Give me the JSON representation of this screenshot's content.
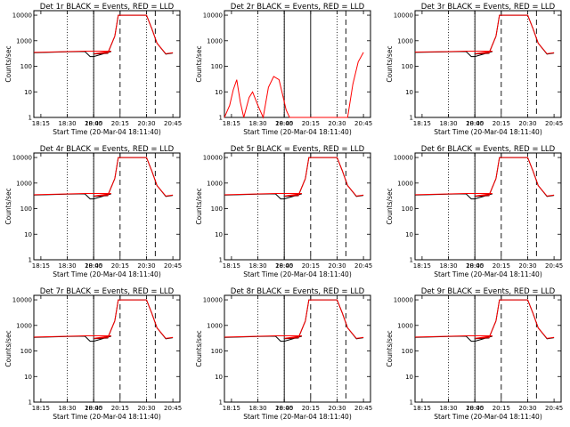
{
  "figure": {
    "ylabel": "Counts/sec",
    "xlabel": "Start Time (20-Mar-04 18:11:40)",
    "xticks": [
      "18:15",
      "18:30",
      "18:45",
      "20:00",
      "20:15",
      "20:30",
      "20:45"
    ],
    "yticks": [
      "1",
      "10",
      "100",
      "1000",
      "10000"
    ],
    "colors": {
      "events": "#000000",
      "lld": "#ff0000"
    }
  },
  "chart_data": [
    {
      "type": "line",
      "title": "Det 1r BLACK = Events, RED = LLD",
      "xlabel": "Start Time (20-Mar-04 18:11:40)",
      "ylabel": "Counts/sec",
      "y_scale": "log",
      "ylim": [
        1,
        15000
      ],
      "vlines": {
        "dotted": [
          "18:30",
          "18:45",
          "20:30"
        ],
        "solid": [
          "20:00"
        ],
        "dashed": [
          "20:15",
          "20:35"
        ]
      },
      "series": [
        {
          "name": "Events",
          "color": "#000000",
          "x": [
            "18:11",
            "18:30",
            "18:40",
            "18:43",
            "18:45",
            "18:55",
            "20:00",
            "20:08",
            "20:12",
            "20:14",
            "20:27",
            "20:30",
            "20:33",
            "20:36",
            "20:41",
            "20:45"
          ],
          "y": [
            340,
            370,
            380,
            240,
            240,
            380,
            300,
            320,
            1500,
            10000,
            10000,
            10000,
            3000,
            800,
            300,
            330
          ]
        },
        {
          "name": "LLD",
          "color": "#ff0000",
          "x": [
            "18:11",
            "18:30",
            "18:40",
            "18:45",
            "18:55",
            "20:00",
            "20:08",
            "20:12",
            "20:14",
            "20:27",
            "20:30",
            "20:33",
            "20:36",
            "20:41",
            "20:45"
          ],
          "y": [
            350,
            375,
            390,
            390,
            390,
            310,
            330,
            1500,
            10000,
            10000,
            10000,
            3000,
            800,
            310,
            340
          ]
        }
      ]
    },
    {
      "type": "line",
      "title": "Det 2r BLACK = Events, RED = LLD",
      "xlabel": "Start Time (20-Mar-04 18:11:40)",
      "ylabel": "Counts/sec",
      "y_scale": "log",
      "ylim": [
        1,
        15000
      ],
      "vlines": {
        "dotted": [
          "18:30",
          "18:45",
          "20:30"
        ],
        "solid": [
          "20:00",
          "20:15"
        ],
        "dashed": [
          "20:35"
        ]
      },
      "series": [
        {
          "name": "Events",
          "color": "#000000",
          "x": [],
          "y": []
        },
        {
          "name": "LLD",
          "color": "#ff0000",
          "x": [
            "18:11",
            "18:14",
            "18:16",
            "18:18",
            "18:20",
            "18:22",
            "18:25",
            "18:27",
            "18:30",
            "18:33",
            "18:36",
            "18:39",
            "18:42",
            "18:44",
            "18:46",
            "18:48",
            "20:36",
            "20:39",
            "20:42",
            "20:45"
          ],
          "y": [
            1,
            3,
            12,
            30,
            4,
            1,
            6,
            10,
            3,
            1,
            15,
            40,
            30,
            8,
            2,
            1,
            1,
            20,
            150,
            350
          ]
        }
      ]
    },
    {
      "type": "line",
      "title": "Det 3r BLACK = Events, RED = LLD",
      "xlabel": "Start Time (20-Mar-04 18:11:40)",
      "ylabel": "Counts/sec",
      "y_scale": "log",
      "ylim": [
        1,
        15000
      ],
      "vlines": {
        "dotted": [
          "18:30",
          "18:45",
          "20:30"
        ],
        "solid": [
          "20:00"
        ],
        "dashed": [
          "20:15",
          "20:35"
        ]
      },
      "series": [
        {
          "name": "Events",
          "color": "#000000",
          "x": [
            "18:11",
            "18:30",
            "18:40",
            "18:43",
            "18:45",
            "18:55",
            "20:00",
            "20:08",
            "20:12",
            "20:14",
            "20:27",
            "20:30",
            "20:33",
            "20:36",
            "20:41",
            "20:45"
          ],
          "y": [
            350,
            370,
            380,
            240,
            240,
            380,
            300,
            320,
            1500,
            10000,
            10000,
            10000,
            3000,
            800,
            300,
            330
          ]
        },
        {
          "name": "LLD",
          "color": "#ff0000",
          "x": [
            "18:11",
            "18:30",
            "18:40",
            "18:45",
            "18:55",
            "20:00",
            "20:08",
            "20:12",
            "20:14",
            "20:27",
            "20:30",
            "20:33",
            "20:36",
            "20:41",
            "20:45"
          ],
          "y": [
            360,
            375,
            390,
            390,
            390,
            310,
            330,
            1500,
            10000,
            10000,
            10000,
            3000,
            800,
            310,
            340
          ]
        }
      ]
    },
    {
      "type": "line",
      "title": "Det 4r BLACK = Events, RED = LLD",
      "xlabel": "Start Time (20-Mar-04 18:11:40)",
      "ylabel": "Counts/sec",
      "y_scale": "log",
      "ylim": [
        1,
        15000
      ],
      "vlines": {
        "dotted": [
          "18:30",
          "18:45",
          "20:30"
        ],
        "solid": [
          "20:00"
        ],
        "dashed": [
          "20:15",
          "20:35"
        ]
      },
      "series": [
        {
          "name": "Events",
          "color": "#000000",
          "x": [
            "18:11",
            "18:30",
            "18:40",
            "18:43",
            "18:45",
            "18:55",
            "20:00",
            "20:08",
            "20:12",
            "20:14",
            "20:27",
            "20:30",
            "20:33",
            "20:36",
            "20:41",
            "20:45"
          ],
          "y": [
            340,
            370,
            380,
            240,
            240,
            380,
            300,
            320,
            1500,
            10000,
            10000,
            10000,
            3000,
            800,
            300,
            330
          ]
        },
        {
          "name": "LLD",
          "color": "#ff0000",
          "x": [
            "18:11",
            "18:30",
            "18:40",
            "18:45",
            "18:55",
            "20:00",
            "20:08",
            "20:12",
            "20:14",
            "20:27",
            "20:30",
            "20:33",
            "20:36",
            "20:41",
            "20:45"
          ],
          "y": [
            350,
            375,
            390,
            390,
            390,
            310,
            330,
            1500,
            10000,
            10000,
            10000,
            3000,
            800,
            310,
            340
          ]
        }
      ]
    },
    {
      "type": "line",
      "title": "Det 5r BLACK = Events, RED = LLD",
      "xlabel": "Start Time (20-Mar-04 18:11:40)",
      "ylabel": "Counts/sec",
      "y_scale": "log",
      "ylim": [
        1,
        15000
      ],
      "vlines": {
        "dotted": [
          "18:30",
          "18:45",
          "20:30"
        ],
        "solid": [
          "20:00"
        ],
        "dashed": [
          "20:15",
          "20:35"
        ]
      },
      "series": [
        {
          "name": "Events",
          "color": "#000000",
          "x": [
            "18:11",
            "18:30",
            "18:40",
            "18:43",
            "18:45",
            "18:55",
            "20:00",
            "20:08",
            "20:12",
            "20:14",
            "20:27",
            "20:30",
            "20:33",
            "20:36",
            "20:41",
            "20:45"
          ],
          "y": [
            340,
            370,
            380,
            240,
            240,
            380,
            300,
            320,
            1500,
            10000,
            10000,
            10000,
            3000,
            800,
            300,
            330
          ]
        },
        {
          "name": "LLD",
          "color": "#ff0000",
          "x": [
            "18:11",
            "18:30",
            "18:40",
            "18:45",
            "18:55",
            "20:00",
            "20:08",
            "20:12",
            "20:14",
            "20:27",
            "20:30",
            "20:33",
            "20:36",
            "20:41",
            "20:45"
          ],
          "y": [
            350,
            375,
            390,
            390,
            390,
            310,
            330,
            1500,
            10000,
            10000,
            10000,
            3000,
            800,
            310,
            340
          ]
        }
      ]
    },
    {
      "type": "line",
      "title": "Det 6r BLACK = Events, RED = LLD",
      "xlabel": "Start Time (20-Mar-04 18:11:40)",
      "ylabel": "Counts/sec",
      "y_scale": "log",
      "ylim": [
        1,
        15000
      ],
      "vlines": {
        "dotted": [
          "18:30",
          "18:45",
          "20:30"
        ],
        "solid": [
          "20:00"
        ],
        "dashed": [
          "20:15",
          "20:35"
        ]
      },
      "series": [
        {
          "name": "Events",
          "color": "#000000",
          "x": [
            "18:11",
            "18:30",
            "18:40",
            "18:43",
            "18:45",
            "18:55",
            "20:00",
            "20:08",
            "20:12",
            "20:14",
            "20:27",
            "20:30",
            "20:33",
            "20:36",
            "20:41",
            "20:45"
          ],
          "y": [
            340,
            370,
            380,
            240,
            240,
            380,
            300,
            320,
            1500,
            10000,
            10000,
            10000,
            3000,
            800,
            300,
            330
          ]
        },
        {
          "name": "LLD",
          "color": "#ff0000",
          "x": [
            "18:11",
            "18:30",
            "18:40",
            "18:45",
            "18:55",
            "20:00",
            "20:08",
            "20:12",
            "20:14",
            "20:27",
            "20:30",
            "20:33",
            "20:36",
            "20:41",
            "20:45"
          ],
          "y": [
            350,
            375,
            390,
            390,
            390,
            310,
            330,
            1500,
            10000,
            10000,
            10000,
            3000,
            800,
            310,
            340
          ]
        }
      ]
    },
    {
      "type": "line",
      "title": "Det 7r BLACK = Events, RED = LLD",
      "xlabel": "Start Time (20-Mar-04 18:11:40)",
      "ylabel": "Counts/sec",
      "y_scale": "log",
      "ylim": [
        1,
        15000
      ],
      "vlines": {
        "dotted": [
          "18:30",
          "18:45",
          "20:30"
        ],
        "solid": [
          "20:00"
        ],
        "dashed": [
          "20:15",
          "20:35"
        ]
      },
      "series": [
        {
          "name": "Events",
          "color": "#000000",
          "x": [
            "18:11",
            "18:30",
            "18:40",
            "18:43",
            "18:45",
            "18:55",
            "20:00",
            "20:08",
            "20:12",
            "20:14",
            "20:27",
            "20:30",
            "20:33",
            "20:36",
            "20:41",
            "20:45"
          ],
          "y": [
            340,
            370,
            380,
            240,
            240,
            380,
            300,
            320,
            1500,
            10000,
            10000,
            10000,
            3000,
            800,
            300,
            330
          ]
        },
        {
          "name": "LLD",
          "color": "#ff0000",
          "x": [
            "18:11",
            "18:30",
            "18:40",
            "18:45",
            "18:55",
            "20:00",
            "20:08",
            "20:12",
            "20:14",
            "20:27",
            "20:30",
            "20:33",
            "20:36",
            "20:41",
            "20:45"
          ],
          "y": [
            350,
            375,
            390,
            390,
            390,
            310,
            330,
            1500,
            10000,
            10000,
            10000,
            3000,
            800,
            310,
            340
          ]
        }
      ]
    },
    {
      "type": "line",
      "title": "Det 8r BLACK = Events, RED = LLD",
      "xlabel": "Start Time (20-Mar-04 18:11:40)",
      "ylabel": "Counts/sec",
      "y_scale": "log",
      "ylim": [
        1,
        15000
      ],
      "vlines": {
        "dotted": [
          "18:30",
          "18:45",
          "20:30"
        ],
        "solid": [
          "20:00"
        ],
        "dashed": [
          "20:15",
          "20:35"
        ]
      },
      "series": [
        {
          "name": "Events",
          "color": "#000000",
          "x": [
            "18:11",
            "18:30",
            "18:40",
            "18:43",
            "18:45",
            "18:55",
            "20:00",
            "20:08",
            "20:12",
            "20:14",
            "20:27",
            "20:30",
            "20:33",
            "20:36",
            "20:41",
            "20:45"
          ],
          "y": [
            340,
            370,
            380,
            240,
            240,
            380,
            300,
            320,
            1500,
            10000,
            10000,
            10000,
            3000,
            800,
            300,
            330
          ]
        },
        {
          "name": "LLD",
          "color": "#ff0000",
          "x": [
            "18:11",
            "18:30",
            "18:40",
            "18:45",
            "18:55",
            "20:00",
            "20:08",
            "20:12",
            "20:14",
            "20:27",
            "20:30",
            "20:33",
            "20:36",
            "20:41",
            "20:45"
          ],
          "y": [
            350,
            375,
            390,
            390,
            390,
            310,
            330,
            1500,
            10000,
            10000,
            10000,
            3000,
            800,
            310,
            340
          ]
        }
      ]
    },
    {
      "type": "line",
      "title": "Det 9r BLACK = Events, RED = LLD",
      "xlabel": "Start Time (20-Mar-04 18:11:40)",
      "ylabel": "Counts/sec",
      "y_scale": "log",
      "ylim": [
        1,
        15000
      ],
      "vlines": {
        "dotted": [
          "18:30",
          "18:45",
          "20:30"
        ],
        "solid": [
          "20:00"
        ],
        "dashed": [
          "20:15",
          "20:35"
        ]
      },
      "series": [
        {
          "name": "Events",
          "color": "#000000",
          "x": [
            "18:11",
            "18:30",
            "18:40",
            "18:43",
            "18:45",
            "18:55",
            "20:00",
            "20:08",
            "20:12",
            "20:14",
            "20:27",
            "20:30",
            "20:33",
            "20:36",
            "20:41",
            "20:45"
          ],
          "y": [
            340,
            370,
            380,
            240,
            240,
            380,
            300,
            320,
            1500,
            10000,
            10000,
            10000,
            3000,
            800,
            300,
            330
          ]
        },
        {
          "name": "LLD",
          "color": "#ff0000",
          "x": [
            "18:11",
            "18:30",
            "18:40",
            "18:45",
            "18:55",
            "20:00",
            "20:08",
            "20:12",
            "20:14",
            "20:27",
            "20:30",
            "20:33",
            "20:36",
            "20:41",
            "20:45"
          ],
          "y": [
            350,
            375,
            390,
            390,
            390,
            310,
            330,
            1500,
            10000,
            10000,
            10000,
            3000,
            800,
            310,
            340
          ]
        }
      ]
    }
  ]
}
